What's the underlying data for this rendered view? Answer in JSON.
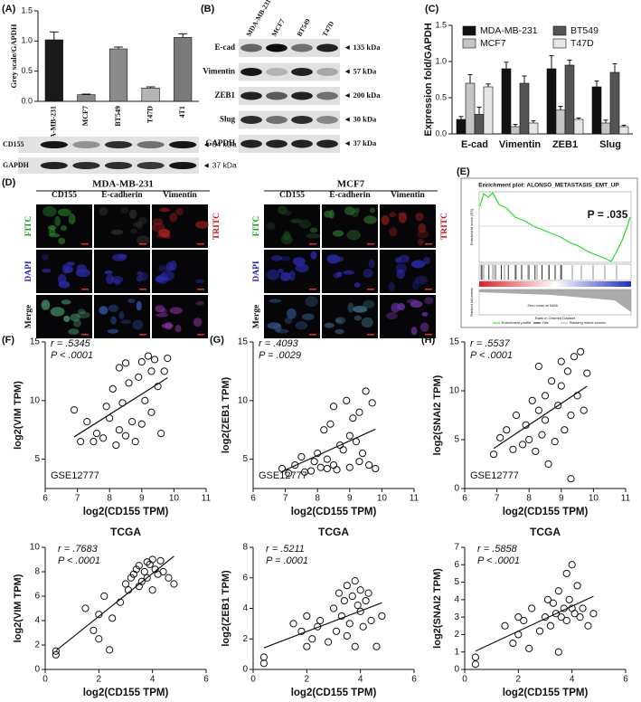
{
  "panel_labels": [
    "(A)",
    "(B)",
    "(C)",
    "(D)",
    "(E)",
    "(F)",
    "(G)",
    "(H)"
  ],
  "blots_a": {
    "rows": [
      {
        "label": "CD155",
        "size": "◄ 54 kDa"
      },
      {
        "label": "GAPDH",
        "size": "◄ 37 kDa"
      }
    ]
  },
  "blots_b": {
    "lanes": [
      "MDA-MB-231",
      "MCF7",
      "BT549",
      "T47D"
    ],
    "rows": [
      {
        "label": "E-cad",
        "size": "◄ 135 kDa"
      },
      {
        "label": "Vimentin",
        "size": "◄ 57 kDa"
      },
      {
        "label": "ZEB1",
        "size": "◄ 200 kDa"
      },
      {
        "label": "Slug",
        "size": "◄ 30 kDa"
      },
      {
        "label": "GAPDH",
        "size": "◄ 37 kDa"
      }
    ]
  },
  "panel_d": {
    "groups": [
      "MDA-MB-231",
      "MCF7"
    ],
    "columns": [
      "CD155",
      "E-cadherin",
      "Vimentin"
    ],
    "rows": [
      "FITC",
      "DAPI",
      "Merge"
    ],
    "row_right": "TRITC"
  },
  "panel_e": {
    "title": "Enrichment plot: ALONSO_METASTASIS_EMT_UP",
    "p": "P = .035",
    "ylabel_top": "Enrichment score (ES)",
    "ylabel_bottom": "Ranked list metric",
    "xlabel": "Rank in Ordered Dataset",
    "zero_cross": "Zero cross at 9408",
    "legend": [
      "Enrichment profile",
      "Hits",
      "Ranking metric scores"
    ]
  },
  "chart_data": [
    {
      "type": "bar",
      "ylabel": "Grey scale/GAPDH",
      "categories": [
        "MDA-MB-231",
        "MCF7",
        "BT549",
        "T47D",
        "4T1"
      ],
      "values": [
        1.02,
        0.11,
        0.87,
        0.22,
        1.06
      ],
      "errors": [
        0.13,
        0.01,
        0.03,
        0.02,
        0.06
      ],
      "colors": [
        "#1a1a1a",
        "#8a8a8a",
        "#8a8a8a",
        "#b5b5b5",
        "#7a7a7a"
      ],
      "ylim": [
        0,
        1.5
      ],
      "yticks": [
        {
          "value": 0,
          "label": "0.0"
        },
        {
          "value": 0.5,
          "label": "0.5"
        },
        {
          "value": 1,
          "label": "1.0"
        },
        {
          "value": 1.5,
          "label": "1.5"
        }
      ]
    },
    {
      "type": "bar",
      "ylabel": "Expression fold/GAPDH",
      "categories": [
        "E-cad",
        "Vimentin",
        "ZEB1",
        "Slug"
      ],
      "series": [
        {
          "name": "MDA-MB-231",
          "color": "#111111",
          "values": [
            0.2,
            0.9,
            0.9,
            0.65
          ],
          "errors": [
            0.04,
            0.09,
            0.18,
            0.08
          ]
        },
        {
          "name": "MCF7",
          "color": "#c4c4c4",
          "values": [
            0.7,
            0.1,
            0.33,
            0.15
          ],
          "errors": [
            0.12,
            0.03,
            0.05,
            0.04
          ]
        },
        {
          "name": "BT549",
          "color": "#555555",
          "values": [
            0.27,
            0.7,
            0.95,
            0.85
          ],
          "errors": [
            0.1,
            0.1,
            0.07,
            0.12
          ]
        },
        {
          "name": "T47D",
          "color": "#e6e6e6",
          "values": [
            0.65,
            0.15,
            0.2,
            0.1
          ],
          "errors": [
            0.04,
            0.03,
            0.02,
            0.02
          ]
        }
      ],
      "ylim": [
        0,
        1.5
      ],
      "yticks": [
        {
          "value": 0,
          "label": "0.0"
        },
        {
          "value": 0.5,
          "label": "0.5"
        },
        {
          "value": 1,
          "label": "1.0"
        },
        {
          "value": 1.5,
          "label": "1.5"
        }
      ]
    },
    {
      "type": "scatter",
      "xlabel": "log2(CD155 TPM)",
      "ylabel": "log2(VIM TPM)",
      "annotations": [
        "r = .5345",
        "P < .0001",
        "GSE12777"
      ],
      "x": [
        6.9,
        7.1,
        7.3,
        7.5,
        7.6,
        7.8,
        7.9,
        8.0,
        8.1,
        8.2,
        8.3,
        8.3,
        8.4,
        8.5,
        8.5,
        8.6,
        8.7,
        8.8,
        8.9,
        9.0,
        9.0,
        9.1,
        9.2,
        9.3,
        9.3,
        9.4,
        9.5,
        9.6,
        9.7,
        9.8
      ],
      "values": [
        9.2,
        6.5,
        8.2,
        6.5,
        7.2,
        6.8,
        9.5,
        8.5,
        11,
        6.2,
        7.5,
        12.8,
        9.8,
        13.2,
        7.0,
        11.5,
        8.2,
        6.5,
        12.0,
        13.3,
        8.0,
        10.0,
        13.8,
        12.5,
        9.0,
        13.5,
        11.2,
        7.2,
        12.5,
        13.6
      ],
      "xlim": [
        6,
        11
      ],
      "xticks": [
        6,
        7,
        8,
        9,
        10,
        11
      ],
      "ylim": [
        2.5,
        15
      ],
      "yticks": [
        5,
        10,
        15
      ]
    },
    {
      "type": "scatter",
      "xlabel": "log2(CD155 TPM)",
      "ylabel": "log2(ZEB1 TPM)",
      "annotations": [
        "r = .4093",
        "P = .0029",
        "GSE12777"
      ],
      "x": [
        6.9,
        7.1,
        7.3,
        7.5,
        7.6,
        7.8,
        7.9,
        8.0,
        8.1,
        8.2,
        8.3,
        8.3,
        8.4,
        8.5,
        8.5,
        8.6,
        8.7,
        8.8,
        8.9,
        9.0,
        9.0,
        9.1,
        9.2,
        9.3,
        9.3,
        9.4,
        9.5,
        9.6,
        9.7,
        9.8
      ],
      "values": [
        4.2,
        3.8,
        4.5,
        5.2,
        3.9,
        4.0,
        4.8,
        5.5,
        4.3,
        7.5,
        4.2,
        5.0,
        8.0,
        4.5,
        9.5,
        4.1,
        6.2,
        5.8,
        10.0,
        4.3,
        7.0,
        8.5,
        6.5,
        4.8,
        9.0,
        5.5,
        10.8,
        4.5,
        9.8,
        4.2
      ],
      "xlim": [
        6,
        11
      ],
      "xticks": [
        6,
        7,
        8,
        9,
        10,
        11
      ],
      "ylim": [
        2.5,
        15
      ],
      "yticks": [
        5,
        10,
        15
      ]
    },
    {
      "type": "scatter",
      "xlabel": "log2(CD155 TPM)",
      "ylabel": "log2(SNAI2 TPM)",
      "annotations": [
        "r = .5537",
        "P < .0001",
        "GSE12777"
      ],
      "x": [
        6.9,
        7.1,
        7.3,
        7.5,
        7.6,
        7.8,
        7.9,
        8.0,
        8.1,
        8.2,
        8.3,
        8.3,
        8.4,
        8.5,
        8.5,
        8.6,
        8.7,
        8.8,
        8.9,
        9.0,
        9.0,
        9.1,
        9.2,
        9.3,
        9.3,
        9.4,
        9.5,
        9.6,
        9.7,
        9.8
      ],
      "values": [
        3.5,
        5.2,
        6.0,
        4.0,
        7.5,
        4.5,
        6.5,
        5.0,
        9.0,
        3.8,
        8.0,
        12.5,
        5.5,
        9.5,
        7.0,
        2.5,
        11.0,
        4.8,
        8.5,
        13.0,
        10.5,
        6.0,
        12.0,
        7.5,
        1.0,
        13.5,
        9.5,
        14.0,
        8.0,
        11.8
      ],
      "xlim": [
        6,
        11
      ],
      "xticks": [
        6,
        7,
        8,
        9,
        10,
        11
      ],
      "ylim": [
        0,
        15
      ],
      "yticks": [
        0,
        5,
        10,
        15
      ]
    },
    {
      "type": "scatter",
      "title": "TCGA",
      "xlabel": "log2(CD155 TPM)",
      "ylabel": "log2(VIM TPM)",
      "annotations": [
        "r = .7683",
        "P < .0001"
      ],
      "x": [
        0.4,
        0.4,
        1.5,
        1.8,
        2.0,
        2.0,
        2.2,
        2.4,
        2.5,
        2.8,
        3.0,
        3.1,
        3.2,
        3.3,
        3.4,
        3.5,
        3.5,
        3.6,
        3.7,
        3.8,
        3.8,
        3.9,
        4.0,
        4.0,
        4.1,
        4.2,
        4.3,
        4.4,
        4.6,
        4.8
      ],
      "values": [
        1.2,
        1.5,
        5.0,
        3.2,
        4.5,
        2.5,
        6.0,
        1.6,
        4.2,
        5.5,
        7.0,
        6.5,
        7.5,
        7.8,
        8.2,
        6.8,
        8.5,
        7.2,
        8.0,
        8.8,
        7.5,
        8.6,
        9.0,
        6.5,
        8.2,
        7.8,
        8.9,
        8.0,
        7.5,
        7.0
      ],
      "xlim": [
        0,
        6
      ],
      "xticks": [
        0,
        2,
        4,
        6
      ],
      "ylim": [
        0,
        10
      ],
      "yticks": [
        0,
        2,
        4,
        6,
        8,
        10
      ]
    },
    {
      "type": "scatter",
      "title": "TCGA",
      "xlabel": "log2(CD155 TPM)",
      "ylabel": "log2(ZEB1 TPM)",
      "annotations": [
        "r = .5211",
        "P = .0001"
      ],
      "x": [
        0.4,
        0.4,
        1.5,
        1.8,
        2.0,
        2.0,
        2.2,
        2.4,
        2.5,
        2.8,
        3.0,
        3.1,
        3.2,
        3.3,
        3.4,
        3.5,
        3.5,
        3.6,
        3.7,
        3.8,
        3.8,
        3.9,
        4.0,
        4.0,
        4.1,
        4.2,
        4.3,
        4.4,
        4.6,
        4.8
      ],
      "values": [
        0.4,
        0.8,
        3.0,
        2.5,
        1.5,
        3.5,
        2.0,
        2.8,
        3.2,
        1.8,
        4.0,
        2.5,
        5.0,
        3.5,
        4.5,
        2.2,
        5.5,
        3.0,
        4.8,
        5.8,
        1.5,
        4.2,
        3.8,
        5.2,
        2.8,
        4.5,
        5.0,
        3.2,
        1.5,
        3.5
      ],
      "xlim": [
        0,
        6
      ],
      "xticks": [
        0,
        2,
        4,
        6
      ],
      "ylim": [
        0,
        8
      ],
      "yticks": [
        0,
        2,
        4,
        6,
        8
      ]
    },
    {
      "type": "scatter",
      "title": "TCGA",
      "xlabel": "log2(CD155 TPM)",
      "ylabel": "log2(SNAI2 TPM)",
      "annotations": [
        "r = .5858",
        "P < .0001"
      ],
      "x": [
        0.4,
        0.4,
        1.5,
        1.8,
        2.0,
        2.0,
        2.2,
        2.4,
        2.5,
        2.8,
        3.0,
        3.1,
        3.2,
        3.3,
        3.4,
        3.5,
        3.5,
        3.6,
        3.7,
        3.8,
        3.8,
        3.9,
        4.0,
        4.0,
        4.1,
        4.2,
        4.3,
        4.4,
        4.6,
        4.8
      ],
      "values": [
        0.3,
        0.7,
        2.5,
        1.5,
        3.0,
        2.0,
        2.8,
        1.2,
        3.5,
        2.2,
        3.0,
        4.0,
        2.5,
        3.8,
        3.2,
        1.0,
        4.5,
        3.0,
        3.5,
        5.5,
        2.8,
        4.0,
        3.5,
        6.0,
        3.2,
        4.8,
        3.0,
        3.5,
        2.5,
        3.2
      ],
      "xlim": [
        0,
        6
      ],
      "xticks": [
        0,
        2,
        4,
        6
      ],
      "ylim": [
        0,
        7
      ],
      "yticks": [
        0,
        1,
        2,
        3,
        4,
        5,
        6,
        7
      ]
    }
  ]
}
